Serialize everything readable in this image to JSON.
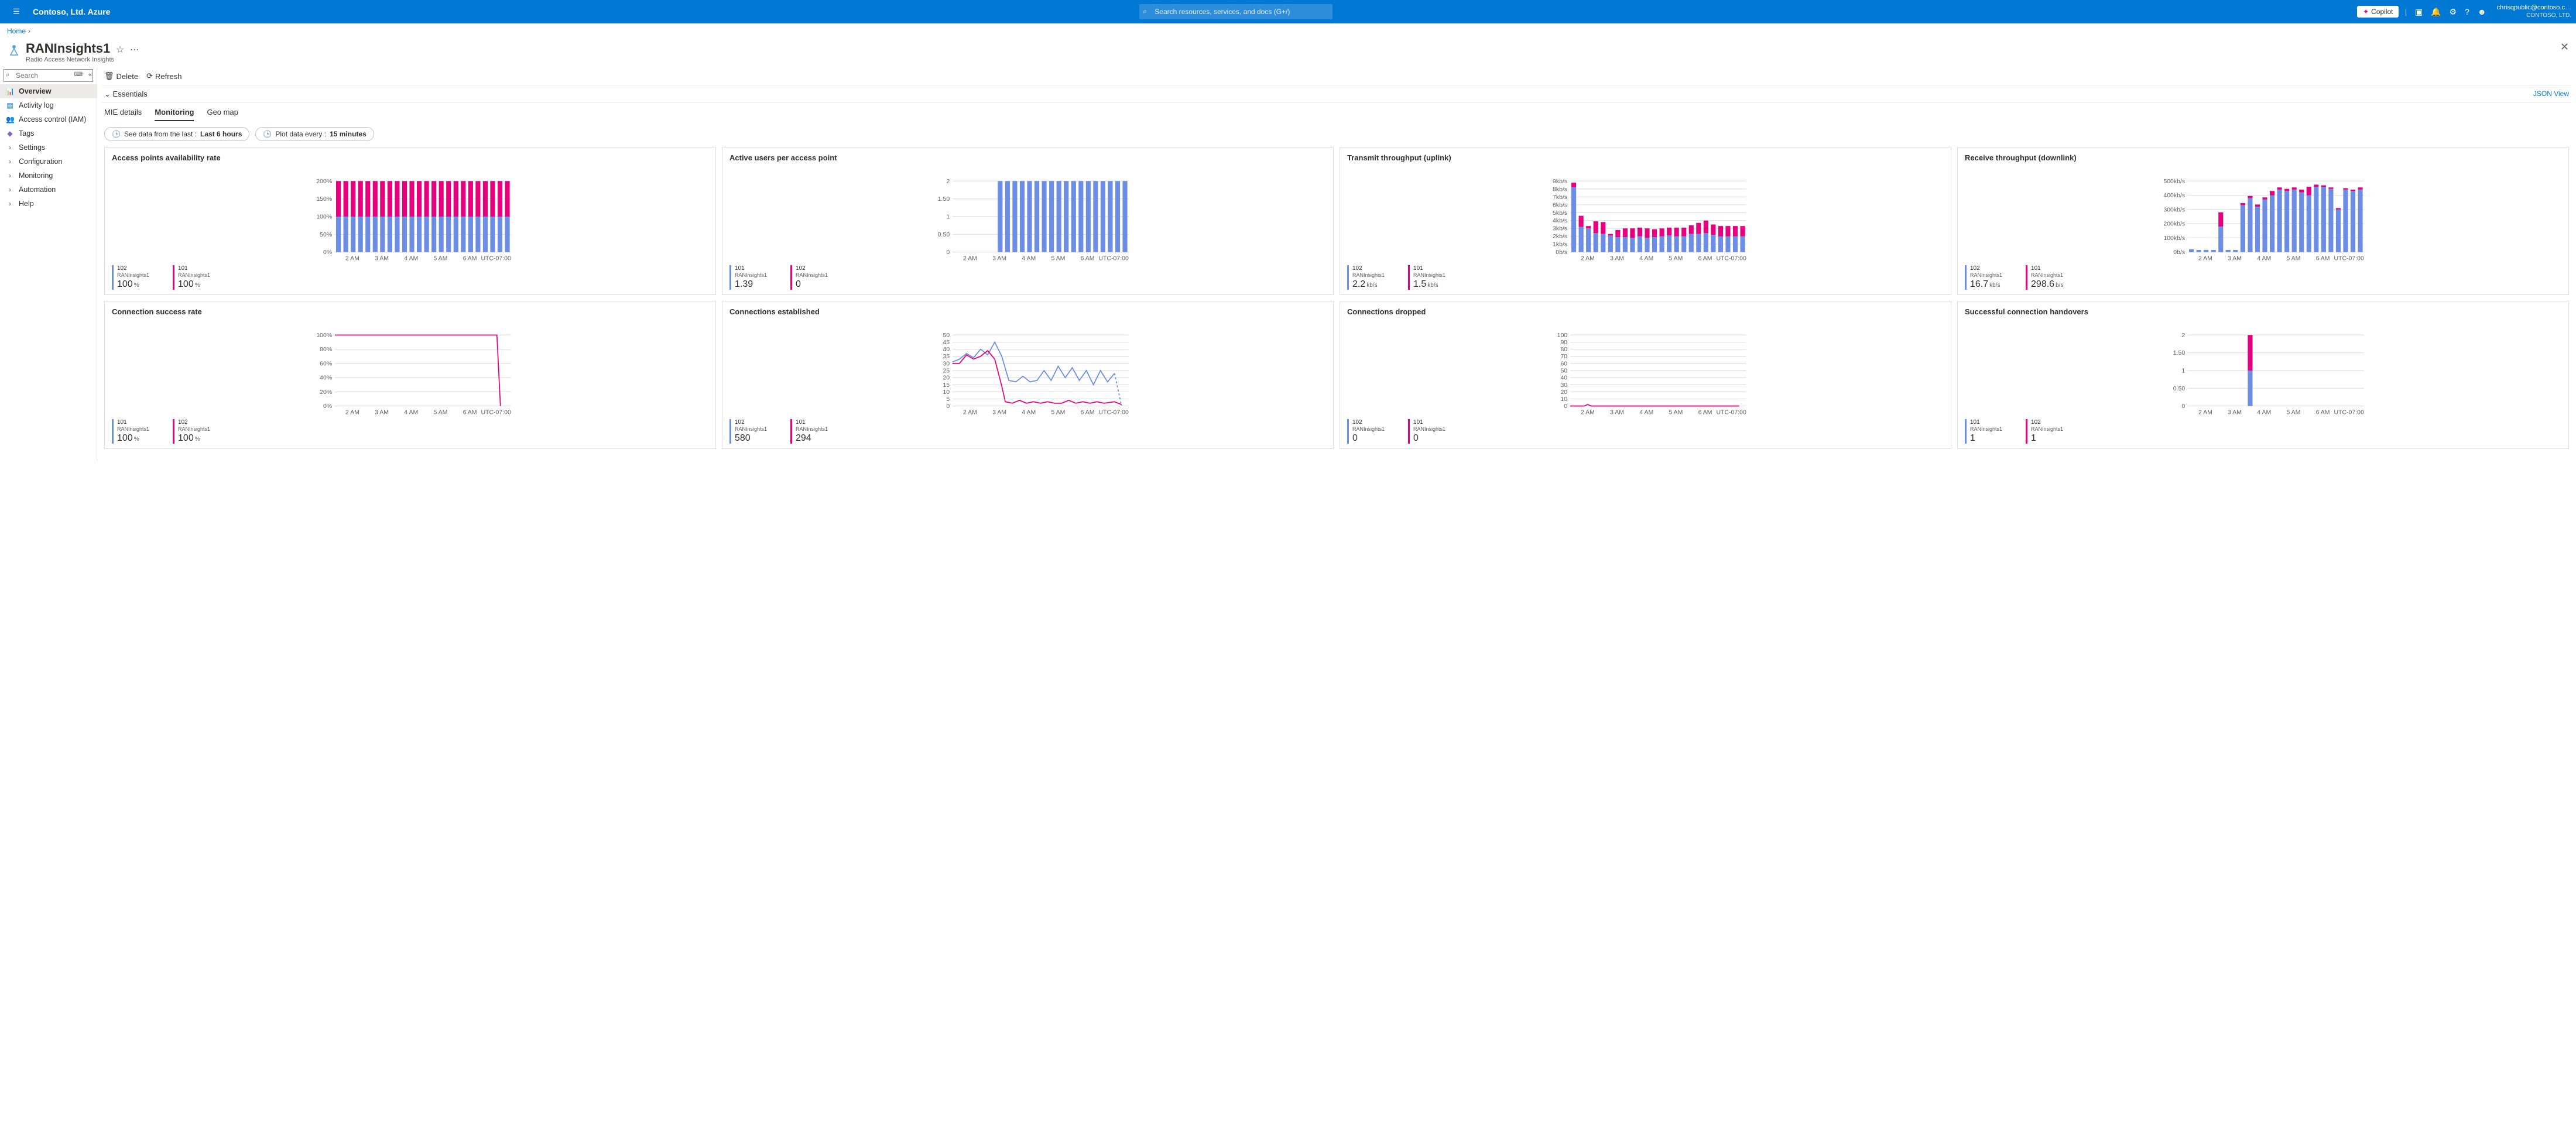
{
  "colors": {
    "blue": "#6b8de3",
    "pink": "#e6007e",
    "azure": "#0078d4",
    "grid": "#e1dfdd",
    "text_muted": "#605e5c"
  },
  "topbar": {
    "brand": "Contoso, Ltd. Azure",
    "search_placeholder": "Search resources, services, and docs (G+/)",
    "copilot": "Copilot",
    "user_email": "chrisqpublic@contoso.c…",
    "user_tenant": "CONTOSO, LTD."
  },
  "breadcrumb": {
    "home": "Home"
  },
  "page": {
    "title": "RANInsights1",
    "subtitle": "Radio Access Network Insights"
  },
  "sidebar": {
    "search_placeholder": "Search",
    "items": [
      {
        "label": "Overview",
        "icon": "📊",
        "color": "#0078d4",
        "active": true
      },
      {
        "label": "Activity log",
        "icon": "▤",
        "color": "#0078d4"
      },
      {
        "label": "Access control (IAM)",
        "icon": "👥",
        "color": "#0078d4"
      },
      {
        "label": "Tags",
        "icon": "◆",
        "color": "#8661c5"
      },
      {
        "label": "Settings",
        "chev": true
      },
      {
        "label": "Configuration",
        "chev": true
      },
      {
        "label": "Monitoring",
        "chev": true
      },
      {
        "label": "Automation",
        "chev": true
      },
      {
        "label": "Help",
        "chev": true
      }
    ]
  },
  "toolbar": {
    "delete": "Delete",
    "refresh": "Refresh"
  },
  "essentials": {
    "label": "Essentials",
    "json_view": "JSON View"
  },
  "tabs": [
    {
      "label": "MIE details"
    },
    {
      "label": "Monitoring",
      "active": true
    },
    {
      "label": "Geo map"
    }
  ],
  "filters": {
    "time_prefix": "See data from the last :",
    "time_value": "Last 6 hours",
    "interval_prefix": "Plot data every :",
    "interval_value": "15 minutes"
  },
  "x_axis": {
    "labels": [
      "2 AM",
      "3 AM",
      "4 AM",
      "5 AM",
      "6 AM"
    ],
    "tz": "UTC-07:00"
  },
  "charts": [
    {
      "title": "Access points availability rate",
      "type": "stacked-bar",
      "y": {
        "labels": [
          "0%",
          "50%",
          "100%",
          "150%",
          "200%"
        ],
        "max": 200
      },
      "series": [
        {
          "id": "102",
          "src": "RANInsights1",
          "val": "100",
          "unit": "%",
          "color": "#6b8de3"
        },
        {
          "id": "101",
          "src": "RANInsights1",
          "val": "100",
          "unit": "%",
          "color": "#e6007e"
        }
      ],
      "bars": {
        "count": 24,
        "blue_h": 100,
        "pink_h": 100
      }
    },
    {
      "title": "Active users per access point",
      "type": "stacked-bar",
      "y": {
        "labels": [
          "0",
          "0.50",
          "1",
          "1.50",
          "2"
        ],
        "max": 2
      },
      "series": [
        {
          "id": "101",
          "src": "RANInsights1",
          "val": "1.39",
          "unit": "",
          "color": "#6b8de3"
        },
        {
          "id": "102",
          "src": "RANInsights1",
          "val": "0",
          "unit": "",
          "color": "#e6007e"
        }
      ],
      "bars": {
        "count": 24,
        "start_at": 6,
        "blue_h": 2,
        "pink_h": 0
      }
    },
    {
      "title": "Transmit throughput (uplink)",
      "type": "stacked-bar",
      "y": {
        "labels": [
          "0b/s",
          "1kb/s",
          "2kb/s",
          "3kb/s",
          "4kb/s",
          "5kb/s",
          "6kb/s",
          "7kb/s",
          "8kb/s",
          "9kb/s"
        ],
        "max": 9
      },
      "series": [
        {
          "id": "102",
          "src": "RANInsights1",
          "val": "2.2",
          "unit": "kb/s",
          "color": "#6b8de3"
        },
        {
          "id": "101",
          "src": "RANInsights1",
          "val": "1.5",
          "unit": "kb/s",
          "color": "#e6007e"
        }
      ],
      "bars_custom": [
        [
          8.2,
          0.6
        ],
        [
          3.2,
          1.4
        ],
        [
          3.0,
          0.3
        ],
        [
          2.4,
          1.5
        ],
        [
          2.3,
          1.5
        ],
        [
          2.1,
          0.2
        ],
        [
          1.9,
          0.9
        ],
        [
          1.9,
          1.1
        ],
        [
          1.8,
          1.2
        ],
        [
          2.0,
          1.1
        ],
        [
          1.8,
          1.2
        ],
        [
          1.9,
          1.0
        ],
        [
          2.0,
          1.0
        ],
        [
          2.1,
          1.0
        ],
        [
          2.0,
          1.1
        ],
        [
          2.0,
          1.1
        ],
        [
          2.3,
          1.1
        ],
        [
          2.3,
          1.4
        ],
        [
          2.4,
          1.6
        ],
        [
          2.2,
          1.3
        ],
        [
          2.0,
          1.3
        ],
        [
          2.0,
          1.3
        ],
        [
          2.0,
          1.3
        ],
        [
          2.0,
          1.3
        ]
      ]
    },
    {
      "title": "Receive throughput (downlink)",
      "type": "stacked-bar",
      "y": {
        "labels": [
          "0b/s",
          "100kb/s",
          "200kb/s",
          "300kb/s",
          "400kb/s",
          "500kb/s"
        ],
        "max": 500
      },
      "series": [
        {
          "id": "102",
          "src": "RANInsights1",
          "val": "16.7",
          "unit": "kb/s",
          "color": "#6b8de3"
        },
        {
          "id": "101",
          "src": "RANInsights1",
          "val": "298.6",
          "unit": "b/s",
          "color": "#e6007e"
        }
      ],
      "bars_custom": [
        [
          20,
          0
        ],
        [
          15,
          0
        ],
        [
          15,
          0
        ],
        [
          15,
          0
        ],
        [
          180,
          100
        ],
        [
          15,
          0
        ],
        [
          15,
          0
        ],
        [
          330,
          15
        ],
        [
          380,
          15
        ],
        [
          320,
          15
        ],
        [
          370,
          15
        ],
        [
          400,
          30
        ],
        [
          440,
          15
        ],
        [
          430,
          15
        ],
        [
          440,
          15
        ],
        [
          420,
          20
        ],
        [
          400,
          60
        ],
        [
          460,
          15
        ],
        [
          460,
          10
        ],
        [
          445,
          10
        ],
        [
          300,
          10
        ],
        [
          440,
          10
        ],
        [
          430,
          10
        ],
        [
          440,
          15
        ]
      ]
    },
    {
      "title": "Connection success rate",
      "type": "line",
      "y": {
        "labels": [
          "0%",
          "20%",
          "40%",
          "60%",
          "80%",
          "100%"
        ],
        "max": 100
      },
      "series": [
        {
          "id": "101",
          "src": "RANInsights1",
          "val": "100",
          "unit": "%",
          "color": "#6b8de3"
        },
        {
          "id": "102",
          "src": "RANInsights1",
          "val": "100",
          "unit": "%",
          "color": "#e6007e"
        }
      ],
      "lines": [
        {
          "color": "#e6007e",
          "pts": [
            [
              0,
              100
            ],
            [
              92,
              100
            ],
            [
              94,
              0
            ]
          ]
        }
      ]
    },
    {
      "title": "Connections established",
      "type": "line",
      "y": {
        "labels": [
          "0",
          "5",
          "10",
          "15",
          "20",
          "25",
          "30",
          "35",
          "40",
          "45",
          "50"
        ],
        "max": 50
      },
      "series": [
        {
          "id": "102",
          "src": "RANInsights1",
          "val": "580",
          "unit": "",
          "color": "#6b8de3"
        },
        {
          "id": "101",
          "src": "RANInsights1",
          "val": "294",
          "unit": "",
          "color": "#e6007e"
        }
      ],
      "lines": [
        {
          "color": "#6b8de3",
          "pts": [
            [
              0,
              31
            ],
            [
              4,
              33
            ],
            [
              8,
              37
            ],
            [
              12,
              34
            ],
            [
              16,
              40
            ],
            [
              20,
              36
            ],
            [
              24,
              45
            ],
            [
              28,
              35
            ],
            [
              32,
              18
            ],
            [
              36,
              17
            ],
            [
              40,
              21
            ],
            [
              44,
              17
            ],
            [
              48,
              18
            ],
            [
              52,
              25
            ],
            [
              56,
              18
            ],
            [
              60,
              28
            ],
            [
              64,
              20
            ],
            [
              68,
              27
            ],
            [
              72,
              18
            ],
            [
              76,
              25
            ],
            [
              80,
              15
            ],
            [
              84,
              25
            ],
            [
              88,
              17
            ],
            [
              92,
              23
            ]
          ],
          "dashed_tail": [
            [
              92,
              23
            ],
            [
              96,
              0
            ]
          ]
        },
        {
          "color": "#e6007e",
          "pts": [
            [
              0,
              30
            ],
            [
              4,
              30
            ],
            [
              8,
              36
            ],
            [
              12,
              33
            ],
            [
              16,
              35
            ],
            [
              20,
              39
            ],
            [
              24,
              33
            ],
            [
              28,
              14
            ],
            [
              30,
              3
            ],
            [
              34,
              2
            ],
            [
              38,
              4
            ],
            [
              42,
              2
            ],
            [
              46,
              3
            ],
            [
              50,
              2
            ],
            [
              54,
              3
            ],
            [
              58,
              2
            ],
            [
              62,
              2
            ],
            [
              66,
              4
            ],
            [
              70,
              2
            ],
            [
              74,
              3
            ],
            [
              78,
              2
            ],
            [
              82,
              3
            ],
            [
              86,
              2
            ],
            [
              92,
              3
            ],
            [
              96,
              1
            ]
          ]
        }
      ]
    },
    {
      "title": "Connections dropped",
      "type": "line",
      "y": {
        "labels": [
          "0",
          "10",
          "20",
          "30",
          "40",
          "50",
          "60",
          "70",
          "80",
          "90",
          "100"
        ],
        "max": 100
      },
      "series": [
        {
          "id": "102",
          "src": "RANInsights1",
          "val": "0",
          "unit": "",
          "color": "#6b8de3"
        },
        {
          "id": "101",
          "src": "RANInsights1",
          "val": "0",
          "unit": "",
          "color": "#e6007e"
        }
      ],
      "lines": [
        {
          "color": "#e6007e",
          "pts": [
            [
              0,
              0
            ],
            [
              8,
              0
            ],
            [
              10,
              2
            ],
            [
              12,
              0
            ],
            [
              96,
              0
            ]
          ]
        }
      ]
    },
    {
      "title": "Successful connection handovers",
      "type": "stacked-bar",
      "y": {
        "labels": [
          "0",
          "0.50",
          "1",
          "1.50",
          "2"
        ],
        "max": 2
      },
      "series": [
        {
          "id": "101",
          "src": "RANInsights1",
          "val": "1",
          "unit": "",
          "color": "#6b8de3"
        },
        {
          "id": "102",
          "src": "RANInsights1",
          "val": "1",
          "unit": "",
          "color": "#e6007e"
        }
      ],
      "bars_sparse": [
        {
          "pos": 8,
          "blue": 1,
          "pink": 1
        }
      ]
    }
  ]
}
